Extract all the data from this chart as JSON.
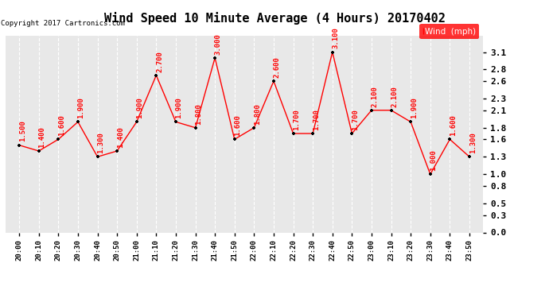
{
  "title": "Wind Speed 10 Minute Average (4 Hours) 20170402",
  "copyright": "Copyright 2017 Cartronics.com",
  "legend_label": "Wind  (mph)",
  "x_labels": [
    "20:00",
    "20:10",
    "20:20",
    "20:30",
    "20:40",
    "20:50",
    "21:00",
    "21:10",
    "21:20",
    "21:30",
    "21:40",
    "21:50",
    "22:00",
    "22:10",
    "22:20",
    "22:30",
    "22:40",
    "22:50",
    "23:00",
    "23:10",
    "23:20",
    "23:30",
    "23:40",
    "23:50"
  ],
  "y_values": [
    1.5,
    1.4,
    1.6,
    1.9,
    1.3,
    1.4,
    1.9,
    2.7,
    1.9,
    1.8,
    3.0,
    1.6,
    1.8,
    2.6,
    1.7,
    1.7,
    3.1,
    1.7,
    2.1,
    2.1,
    1.9,
    1.0,
    1.6,
    1.3
  ],
  "line_color": "red",
  "marker_color": "black",
  "background_color": "#ffffff",
  "plot_bg_color": "#e8e8e8",
  "grid_color": "#cccccc",
  "title_fontsize": 11,
  "ylim": [
    0.0,
    3.38
  ],
  "yticks": [
    0.0,
    0.3,
    0.5,
    0.8,
    1.0,
    1.3,
    1.6,
    1.8,
    2.1,
    2.3,
    2.6,
    2.8,
    3.1
  ]
}
